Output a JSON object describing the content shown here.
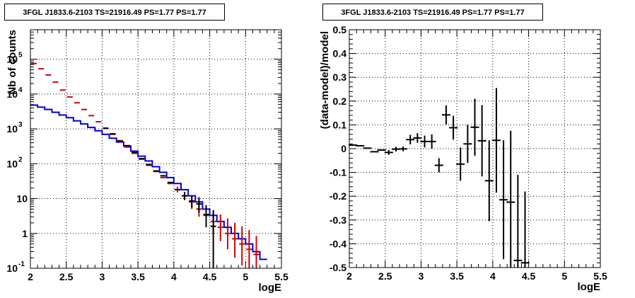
{
  "chart_data": [
    {
      "type": "line",
      "title": "3FGL J1833.6-2103 TS=21916.49 PS=1.77 PS=1.77",
      "xlabel": "logE",
      "ylabel": "Nb of counts",
      "xlim": [
        2,
        5.5
      ],
      "ylim": [
        0.1,
        700000
      ],
      "yscale": "log",
      "grid": true,
      "xticks": [
        "2",
        "2.5",
        "3",
        "3.5",
        "4",
        "4.5",
        "5",
        "5.5"
      ],
      "yticks": [
        {
          "v": 0.1,
          "base": "10",
          "exp": "-1"
        },
        {
          "v": 1,
          "base": "1",
          "exp": ""
        },
        {
          "v": 10,
          "base": "10",
          "exp": ""
        },
        {
          "v": 100,
          "base": "10",
          "exp": "2"
        },
        {
          "v": 1000,
          "base": "10",
          "exp": "3"
        },
        {
          "v": 10000,
          "base": "10",
          "exp": "4"
        },
        {
          "v": 100000,
          "base": "10",
          "exp": "5"
        }
      ],
      "bin_edges": [
        2.0,
        2.1,
        2.2,
        2.3,
        2.4,
        2.5,
        2.6,
        2.7,
        2.8,
        2.9,
        3.0,
        3.1,
        3.2,
        3.3,
        3.4,
        3.5,
        3.6,
        3.7,
        3.8,
        3.9,
        4.0,
        4.1,
        4.2,
        4.3,
        4.4,
        4.5,
        4.6,
        4.7,
        4.8,
        4.9,
        5.0,
        5.1,
        5.2,
        5.3
      ],
      "series": [
        {
          "role": "red-markers",
          "color": "#d40000",
          "x": [
            2.05,
            2.15,
            2.25,
            2.35,
            2.45,
            2.55,
            2.65,
            2.75,
            2.85,
            2.95,
            3.05,
            3.15,
            3.25,
            3.35,
            3.45,
            3.55,
            3.65,
            3.75,
            3.85,
            3.95,
            4.05,
            4.15,
            4.25,
            4.35,
            4.45,
            4.55,
            4.65,
            4.75,
            4.85,
            4.95,
            5.05,
            5.15
          ],
          "y": [
            75000,
            53000,
            35000,
            22000,
            13000,
            8200,
            5600,
            3600,
            2400,
            1600,
            1050,
            700,
            460,
            300,
            200,
            135,
            90,
            60,
            40,
            27,
            18,
            12,
            8,
            5,
            3.3,
            2.2,
            1.5,
            1,
            0.7,
            0.5,
            0.35,
            0.25
          ],
          "err": [
            [
              0,
              0
            ],
            [
              0,
              0
            ],
            [
              0,
              0
            ],
            [
              0,
              0
            ],
            [
              0,
              0
            ],
            [
              0,
              0
            ],
            [
              0,
              0
            ],
            [
              0,
              0
            ],
            [
              0,
              0
            ],
            [
              0,
              0
            ],
            [
              0,
              0
            ],
            [
              0,
              0
            ],
            [
              0,
              0
            ],
            [
              0,
              0
            ],
            [
              0,
              0
            ],
            [
              0,
              0
            ],
            [
              0,
              0
            ],
            [
              0,
              0
            ],
            [
              0,
              0
            ],
            [
              0,
              0
            ],
            [
              3,
              4
            ],
            [
              2,
              2.5
            ],
            [
              3,
              4
            ],
            [
              2,
              3
            ],
            [
              1.5,
              3
            ],
            [
              1.2,
              2.5
            ],
            [
              0.9,
              2
            ],
            [
              0.65,
              1.7
            ],
            [
              0.5,
              1.3
            ],
            [
              0.38,
              1.1
            ],
            [
              0.28,
              0.9
            ],
            [
              0.2,
              0.6
            ]
          ]
        },
        {
          "role": "data-points",
          "color": "#000000",
          "x": [
            3.05,
            3.15,
            3.25,
            3.35,
            3.45,
            3.55,
            3.65,
            3.75,
            3.85,
            3.95,
            4.05,
            4.15,
            4.25,
            4.35,
            4.45,
            4.55
          ],
          "y": [
            1040,
            720,
            440,
            330,
            210,
            140,
            95,
            62,
            45,
            29,
            18,
            12,
            8.5,
            7,
            3.5,
            1.6
          ],
          "err": [
            [
              0,
              0
            ],
            [
              0,
              0
            ],
            [
              0,
              0
            ],
            [
              0,
              0
            ],
            [
              0,
              0
            ],
            [
              0,
              0
            ],
            [
              0,
              0
            ],
            [
              0,
              0
            ],
            [
              0,
              0
            ],
            [
              0,
              0
            ],
            [
              0,
              0
            ],
            [
              3,
              3.5
            ],
            [
              3,
              3.5
            ],
            [
              3,
              4
            ],
            [
              2,
              3
            ],
            [
              1.5,
              3
            ]
          ]
        },
        {
          "role": "model-histogram",
          "color": "#0000dd",
          "y": [
            4800,
            4200,
            3600,
            3000,
            2500,
            2100,
            1700,
            1380,
            1100,
            880,
            700,
            540,
            420,
            320,
            230,
            165,
            120,
            82,
            57,
            40,
            27,
            18,
            12,
            8,
            5,
            3.3,
            2.2,
            1.5,
            1,
            0.7,
            0.5,
            0.3,
            0.18
          ]
        }
      ]
    },
    {
      "type": "scatter",
      "title": "3FGL J1833.6-2103 TS=21916.49 PS=1.77 PS=1.77",
      "xlabel": "logE",
      "ylabel": "(data-model)/model",
      "xlim": [
        2,
        5.5
      ],
      "ylim": [
        -0.5,
        0.5
      ],
      "grid": true,
      "xticks": [
        "2",
        "2.5",
        "3",
        "3.5",
        "4",
        "4.5",
        "5",
        "5.5"
      ],
      "yticks": [
        "-0.5",
        "-0.4",
        "-0.3",
        "-0.2",
        "-0.1",
        "0",
        "0.1",
        "0.2",
        "0.3",
        "0.4",
        "0.5"
      ],
      "series": [
        {
          "color": "#000000",
          "x": [
            2.05,
            2.15,
            2.25,
            2.35,
            2.45,
            2.55,
            2.65,
            2.75,
            2.85,
            2.95,
            3.05,
            3.15,
            3.25,
            3.35,
            3.45,
            3.55,
            3.65,
            3.75,
            3.85,
            3.95,
            4.05,
            4.15,
            4.25,
            4.35,
            4.45
          ],
          "y": [
            0.015,
            0.012,
            0.002,
            -0.013,
            -0.006,
            -0.016,
            -0.002,
            -0.001,
            0.038,
            0.045,
            0.03,
            0.03,
            -0.07,
            0.142,
            0.088,
            -0.065,
            0.02,
            0.09,
            0.033,
            -0.135,
            0.035,
            -0.215,
            -0.225,
            -0.47,
            -0.48
          ],
          "err": [
            0,
            0,
            0,
            0,
            0,
            0.01,
            0.01,
            0.01,
            0.02,
            0.02,
            0.025,
            0.03,
            0.03,
            0.04,
            0.05,
            0.07,
            0.08,
            0.12,
            0.15,
            0.17,
            0.22,
            0.25,
            0.3,
            0.36,
            0.3
          ]
        }
      ]
    }
  ]
}
